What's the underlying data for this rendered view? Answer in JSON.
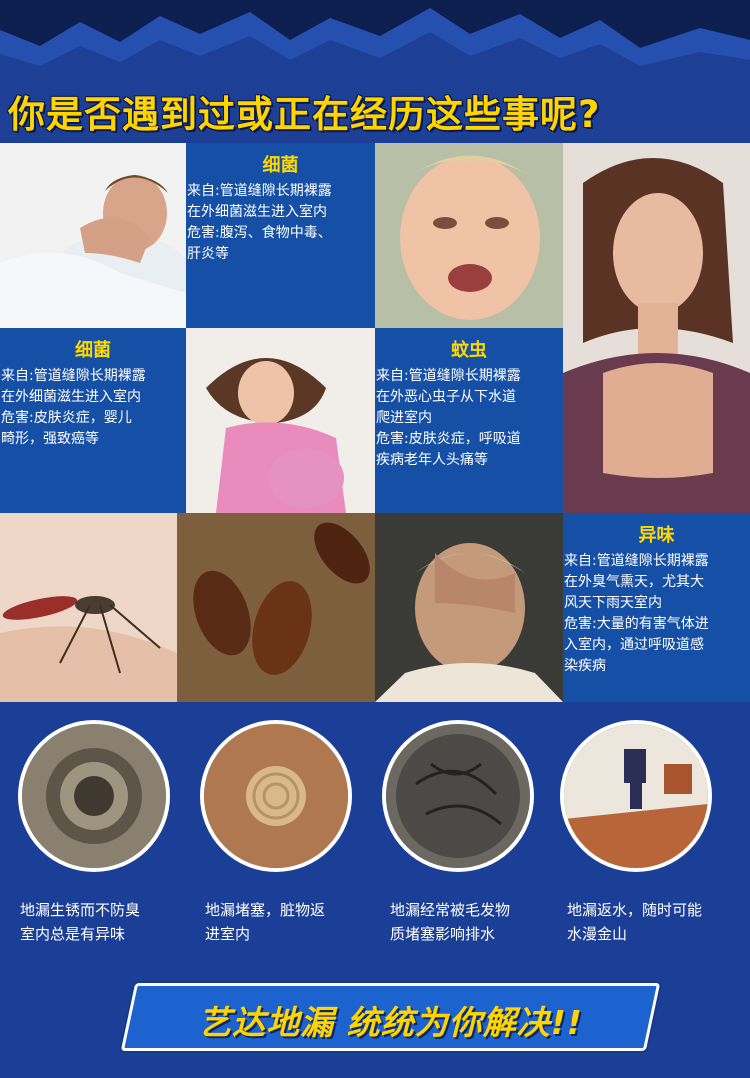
{
  "headline": "你是否遇到过或正在经历这些事呢?",
  "cards": [
    {
      "title": "细菌",
      "lines": [
        "来自:管道缝隙长期裸露",
        "在外细菌滋生进入室内",
        "危害:腹泻、食物中毒、",
        "肝炎等"
      ]
    },
    {
      "title": "细菌",
      "lines": [
        "来自:管道缝隙长期裸露",
        "在外细菌滋生进入室内",
        "危害:皮肤炎症，婴儿",
        "畸形，强致癌等"
      ]
    },
    {
      "title": "蚊虫",
      "lines": [
        "来自:管道缝隙长期裸露",
        "在外恶心虫子从下水道",
        "爬进室内",
        "危害:皮肤炎症，呼吸道",
        "疾病老年人头痛等"
      ]
    },
    {
      "title": "异味",
      "lines": [
        "来自:管道缝隙长期裸露",
        "在外臭气熏天，尤其大",
        "风天下雨天室内",
        "危害:大量的有害气体进",
        "入室内，通过呼吸道感",
        "染疾病"
      ]
    }
  ],
  "problems": [
    {
      "lines": [
        "地漏生锈而不防臭",
        "室内总是有异味"
      ]
    },
    {
      "lines": [
        "地漏堵塞，脏物返",
        "进室内"
      ]
    },
    {
      "lines": [
        "地漏经常被毛发物",
        "质堵塞影响排水"
      ]
    },
    {
      "lines": [
        "地漏返水，随时可能",
        "水漫金山"
      ]
    }
  ],
  "slogan": "艺达地漏  统统为你解决!!",
  "colors": {
    "background": "#1b3f96",
    "card": "#1650a6",
    "accent_yellow": "#ffd400"
  }
}
